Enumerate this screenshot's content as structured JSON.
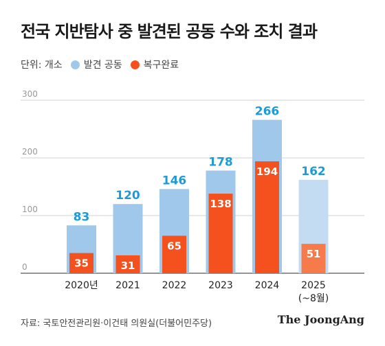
{
  "title": "전국 지반탐사 중 발견된 공동 수와 조치 결과",
  "legend": {
    "unit": "단위: 개소",
    "items": [
      {
        "label": "발견 공동",
        "color": "#9fc8ea"
      },
      {
        "label": "복구완료",
        "color": "#f4511e"
      }
    ]
  },
  "chart_data": {
    "type": "bar",
    "categories": [
      "2020년",
      "2021",
      "2022",
      "2023",
      "2024",
      "2025"
    ],
    "category_sublabels": [
      "",
      "",
      "",
      "",
      "",
      "(~8월)"
    ],
    "series": [
      {
        "name": "발견 공동",
        "values": [
          83,
          120,
          146,
          178,
          266,
          162
        ]
      },
      {
        "name": "복구완료",
        "values": [
          35,
          31,
          65,
          138,
          194,
          51
        ]
      }
    ],
    "yticks": [
      0,
      100,
      200,
      300
    ],
    "ylim": [
      0,
      300
    ],
    "colors": {
      "found": "#9fc8ea",
      "found_partial": "#c3dcf2",
      "repaired": "#f4511e",
      "repaired_partial": "#f77a4a",
      "found_label": "#1e9ad6"
    }
  },
  "source": "자료: 국토안전관리원·이건태 의원실(더불어민주당)",
  "brand": "The JoongAng"
}
